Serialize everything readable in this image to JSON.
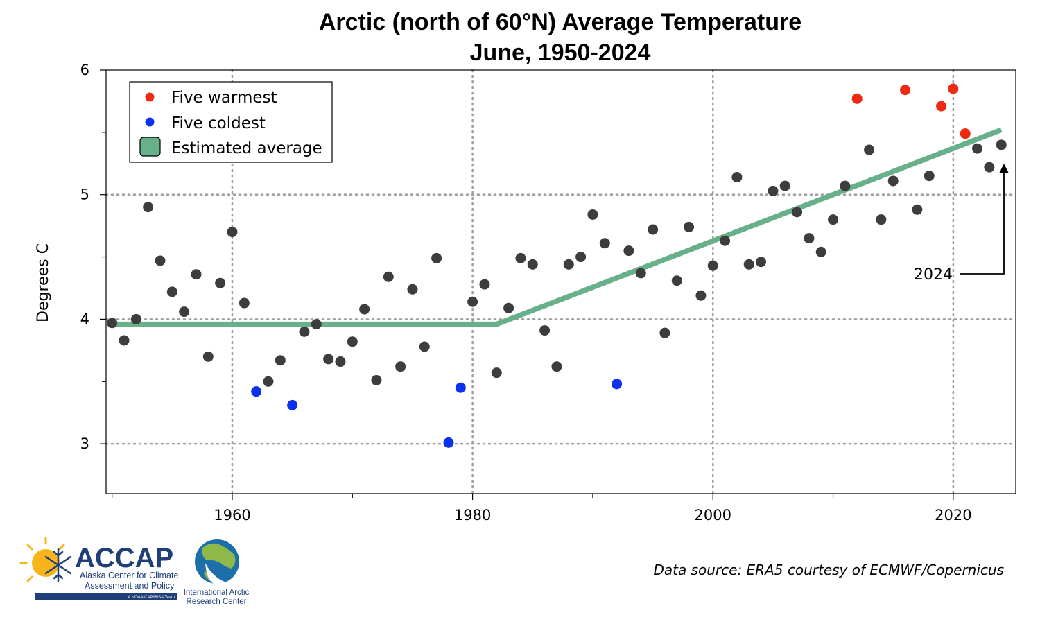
{
  "chart_data": {
    "type": "scatter",
    "title": "Arctic (north of 60°N) Average Temperature",
    "subtitle": "June, 1950-2024",
    "xlabel": "",
    "ylabel": "Degrees C",
    "xlim": [
      1949.5,
      2025.2
    ],
    "ylim": [
      2.6,
      6.0
    ],
    "xticks": [
      1960,
      1980,
      2000,
      2020
    ],
    "xticks_minor": [
      1950,
      1970,
      1990,
      2010
    ],
    "yticks": [
      3,
      4,
      5,
      6
    ],
    "yticks_minor": [
      3.5,
      4.5,
      5.5
    ],
    "grid": "dotted at major ticks",
    "legend_position": "top-left",
    "colors": {
      "normal": "#3d3d3d",
      "warm": "#ee2a12",
      "cold": "#0b31ee",
      "trend": "#67b08a"
    },
    "legend": [
      {
        "label": "Five warmest",
        "kind": "warm"
      },
      {
        "label": "Five coldest",
        "kind": "cold"
      },
      {
        "label": "Estimated average",
        "kind": "trend"
      }
    ],
    "series": [
      {
        "name": "Five warmest",
        "kind": "warm",
        "x": [
          2012,
          2016,
          2019,
          2020,
          2021
        ],
        "y": [
          5.77,
          5.84,
          5.71,
          5.85,
          5.49
        ]
      },
      {
        "name": "Five coldest",
        "kind": "cold",
        "x": [
          1962,
          1965,
          1978,
          1979,
          1992
        ],
        "y": [
          3.42,
          3.31,
          3.01,
          3.45,
          3.48
        ]
      },
      {
        "kind": "normal",
        "x": [
          1950,
          1951,
          1952,
          1953,
          1954,
          1955,
          1956,
          1957,
          1958,
          1959,
          1960,
          1961,
          1963,
          1964,
          1966,
          1967,
          1968,
          1969,
          1970,
          1971,
          1972,
          1973,
          1974,
          1975,
          1976,
          1977,
          1980,
          1981,
          1982,
          1983,
          1984,
          1985,
          1986,
          1987,
          1988,
          1989,
          1990,
          1991,
          1993,
          1994,
          1995,
          1996,
          1997,
          1998,
          1999,
          2000,
          2001,
          2002,
          2003,
          2004,
          2005,
          2006,
          2007,
          2008,
          2009,
          2010,
          2011,
          2013,
          2014,
          2015,
          2017,
          2018,
          2022,
          2023,
          2024
        ],
        "y": [
          3.97,
          3.83,
          4.0,
          4.9,
          4.47,
          4.22,
          4.06,
          4.36,
          3.7,
          4.29,
          4.7,
          4.13,
          3.5,
          3.67,
          3.9,
          3.96,
          3.68,
          3.66,
          3.82,
          4.08,
          3.51,
          4.34,
          3.62,
          4.24,
          3.78,
          4.49,
          4.14,
          4.28,
          3.57,
          4.09,
          4.49,
          4.44,
          3.91,
          3.62,
          4.44,
          4.5,
          4.84,
          4.61,
          4.55,
          4.37,
          4.72,
          3.89,
          4.31,
          4.74,
          4.19,
          4.43,
          4.63,
          5.14,
          4.44,
          4.46,
          5.03,
          5.07,
          4.86,
          4.65,
          4.54,
          4.8,
          5.07,
          5.36,
          4.8,
          5.11,
          4.88,
          5.15,
          5.37,
          5.22,
          5.4
        ]
      }
    ],
    "trend": {
      "name": "Estimated average",
      "x": [
        1950,
        1982,
        2024
      ],
      "y": [
        3.96,
        3.96,
        5.52
      ]
    },
    "annotation": {
      "text": "2024",
      "target_x": 2024,
      "target_y": 5.4
    }
  },
  "footer": {
    "source": "Data source: ERA5 courtesy of ECMWF/Copernicus",
    "accap": {
      "name": "ACCAP",
      "line1": "Alaska Center for Climate",
      "line2": "Assessment and Policy",
      "tagline": "A NOAA CAP/RISA Team"
    },
    "iarc": {
      "line1": "International Arctic",
      "line2": "Research Center"
    }
  }
}
